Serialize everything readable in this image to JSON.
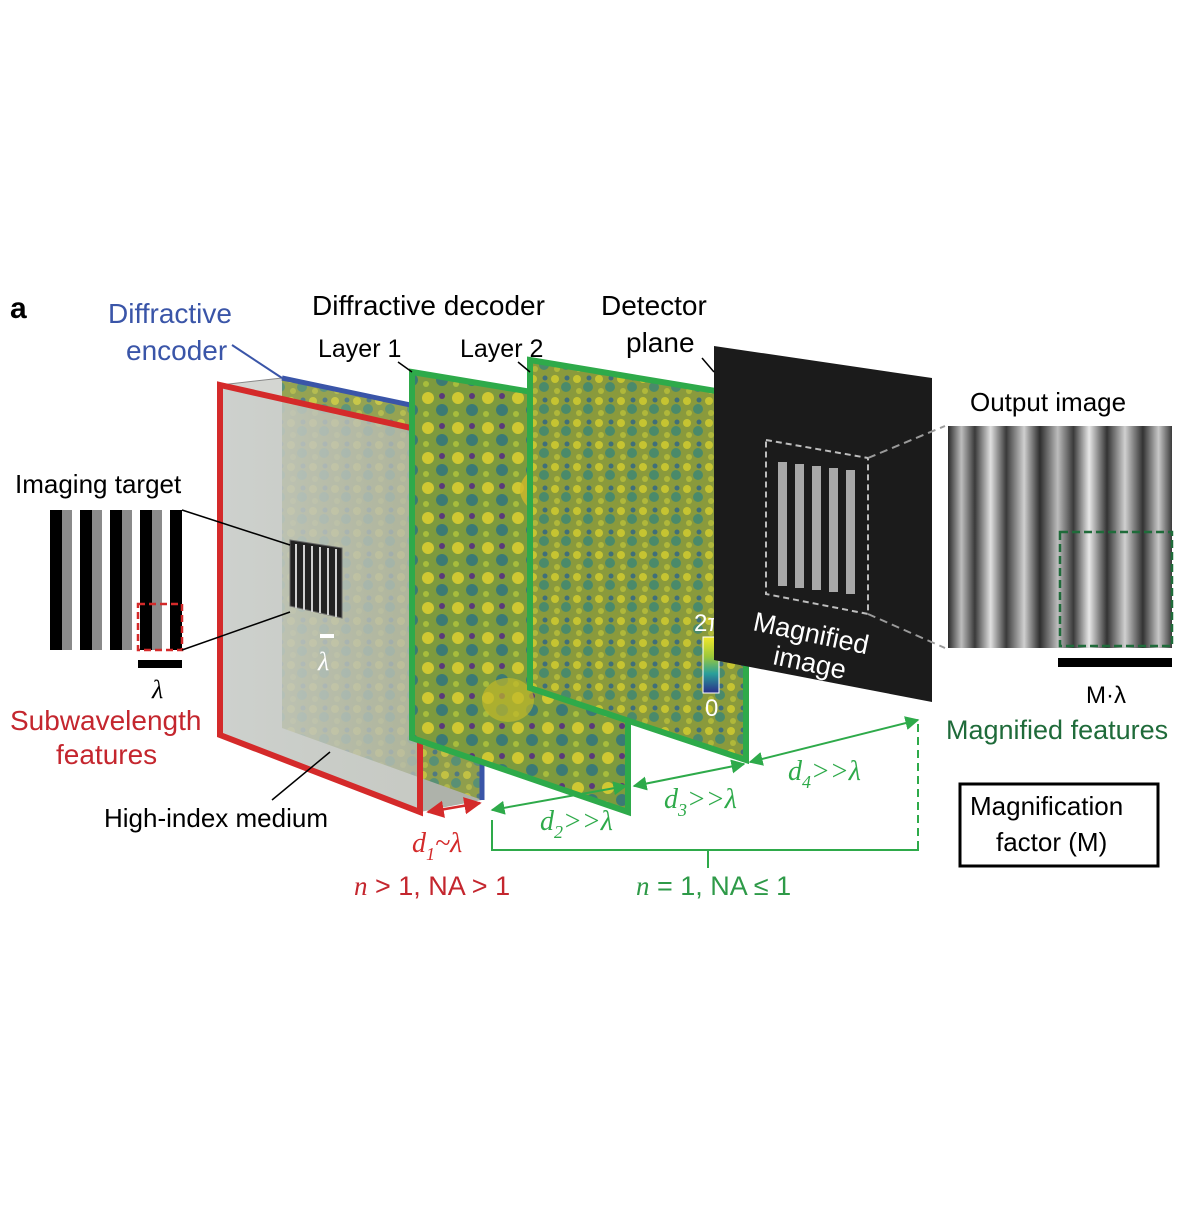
{
  "panel_label": "a",
  "labels": {
    "encoder_line1": "Diffractive",
    "encoder_line2": "encoder",
    "decoder": "Diffractive decoder",
    "layer1": "Layer 1",
    "layer2": "Layer 2",
    "detector_line1": "Detector",
    "detector_line2": "plane",
    "output_image": "Output image",
    "imaging_target": "Imaging target",
    "lambda_small": "λ",
    "lambda_target": "λ",
    "subwavelength_line1": "Subwavelength",
    "subwavelength_line2": "features",
    "high_index_medium": "High-index medium",
    "magnified_line1": "Magnified",
    "magnified_line2": "image",
    "colorbar_top": "2π",
    "colorbar_bottom": "0",
    "m_lambda": "M·λ",
    "magnified_features": "Magnified features",
    "magnification_line1": "Magnification",
    "magnification_line2": "factor (M)"
  },
  "distances": {
    "d1": {
      "var": "d",
      "sub": "1",
      "rel": "~λ"
    },
    "d2": {
      "var": "d",
      "sub": "2",
      "rel": ">>λ"
    },
    "d3": {
      "var": "d",
      "sub": "3",
      "rel": ">>λ"
    },
    "d4": {
      "var": "d",
      "sub": "4",
      "rel": ">>λ"
    }
  },
  "conditions": {
    "high_index": {
      "n": "n",
      "rest": " > 1, NA > 1"
    },
    "free_space": {
      "n": "n",
      "rest": " = 1, NA ≤ 1"
    }
  },
  "colors": {
    "encoder_blue": "#3a55a8",
    "red": "#d42a2a",
    "green": "#2eaa4a",
    "dark_green": "#1f6b3a",
    "label_red": "#c4262e",
    "label_green": "#2e9a48"
  }
}
